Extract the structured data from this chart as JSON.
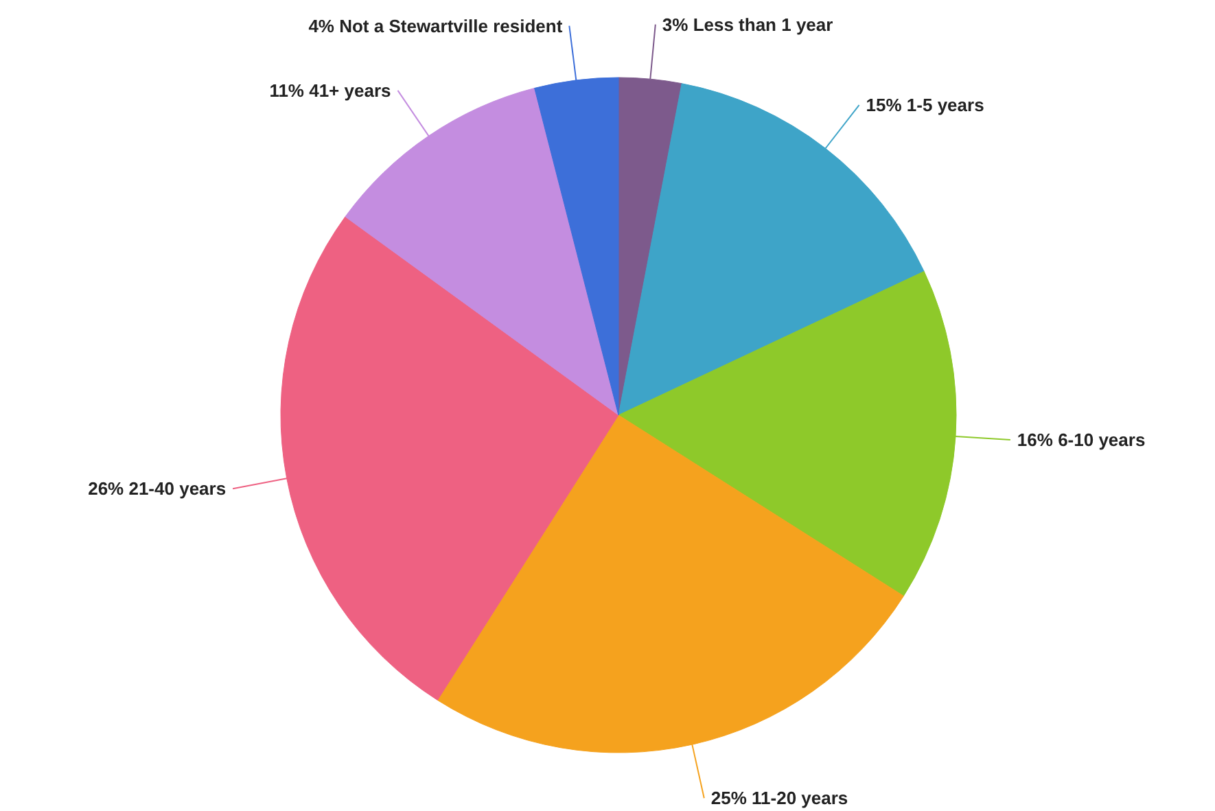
{
  "chart_data": {
    "type": "pie",
    "categories": [
      "Less than 1 year",
      "1-5 years",
      "6-10 years",
      "11-20 years",
      "21-40 years",
      "41+ years",
      "Not a Stewartville resident"
    ],
    "values": [
      3,
      15,
      16,
      25,
      26,
      11,
      4
    ],
    "value_labels": [
      "3%",
      "15%",
      "16%",
      "25%",
      "26%",
      "11%",
      "4%"
    ],
    "colors": [
      "#7d5a8c",
      "#3ea4c8",
      "#8ec92a",
      "#f5a21e",
      "#ee6182",
      "#c48de0",
      "#3d6fd9"
    ]
  }
}
